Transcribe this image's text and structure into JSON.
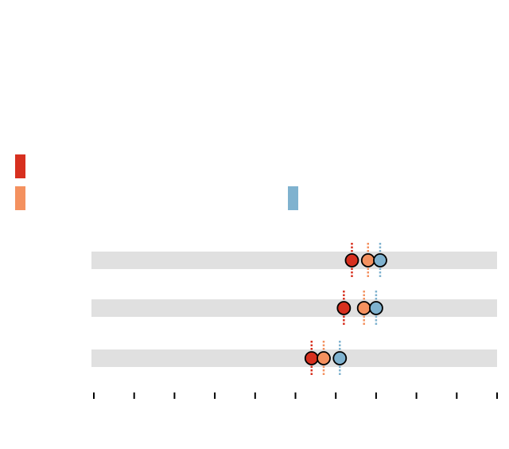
{
  "chart_data": {
    "type": "scatter",
    "orientation": "horizontal-dot-plot",
    "title": "",
    "xlabel": "",
    "ylabel": "",
    "categories": [
      "",
      "",
      ""
    ],
    "x_ticks": [
      0,
      1,
      2,
      3,
      4,
      5,
      6,
      7,
      8,
      9,
      10
    ],
    "x_tick_labels": [
      "",
      "",
      "",
      "",
      "",
      "",
      "",
      "",
      "",
      "",
      ""
    ],
    "xlim": [
      0,
      10
    ],
    "grid": false,
    "legend": "top-left",
    "series": [
      {
        "color": "#d7301f",
        "values": [
          6.4,
          6.2,
          5.4
        ]
      },
      {
        "color": "#f4915f",
        "values": [
          6.8,
          6.7,
          5.7
        ]
      },
      {
        "color": "#7fb2cf",
        "values": [
          7.1,
          7.0,
          6.1
        ]
      }
    ]
  }
}
